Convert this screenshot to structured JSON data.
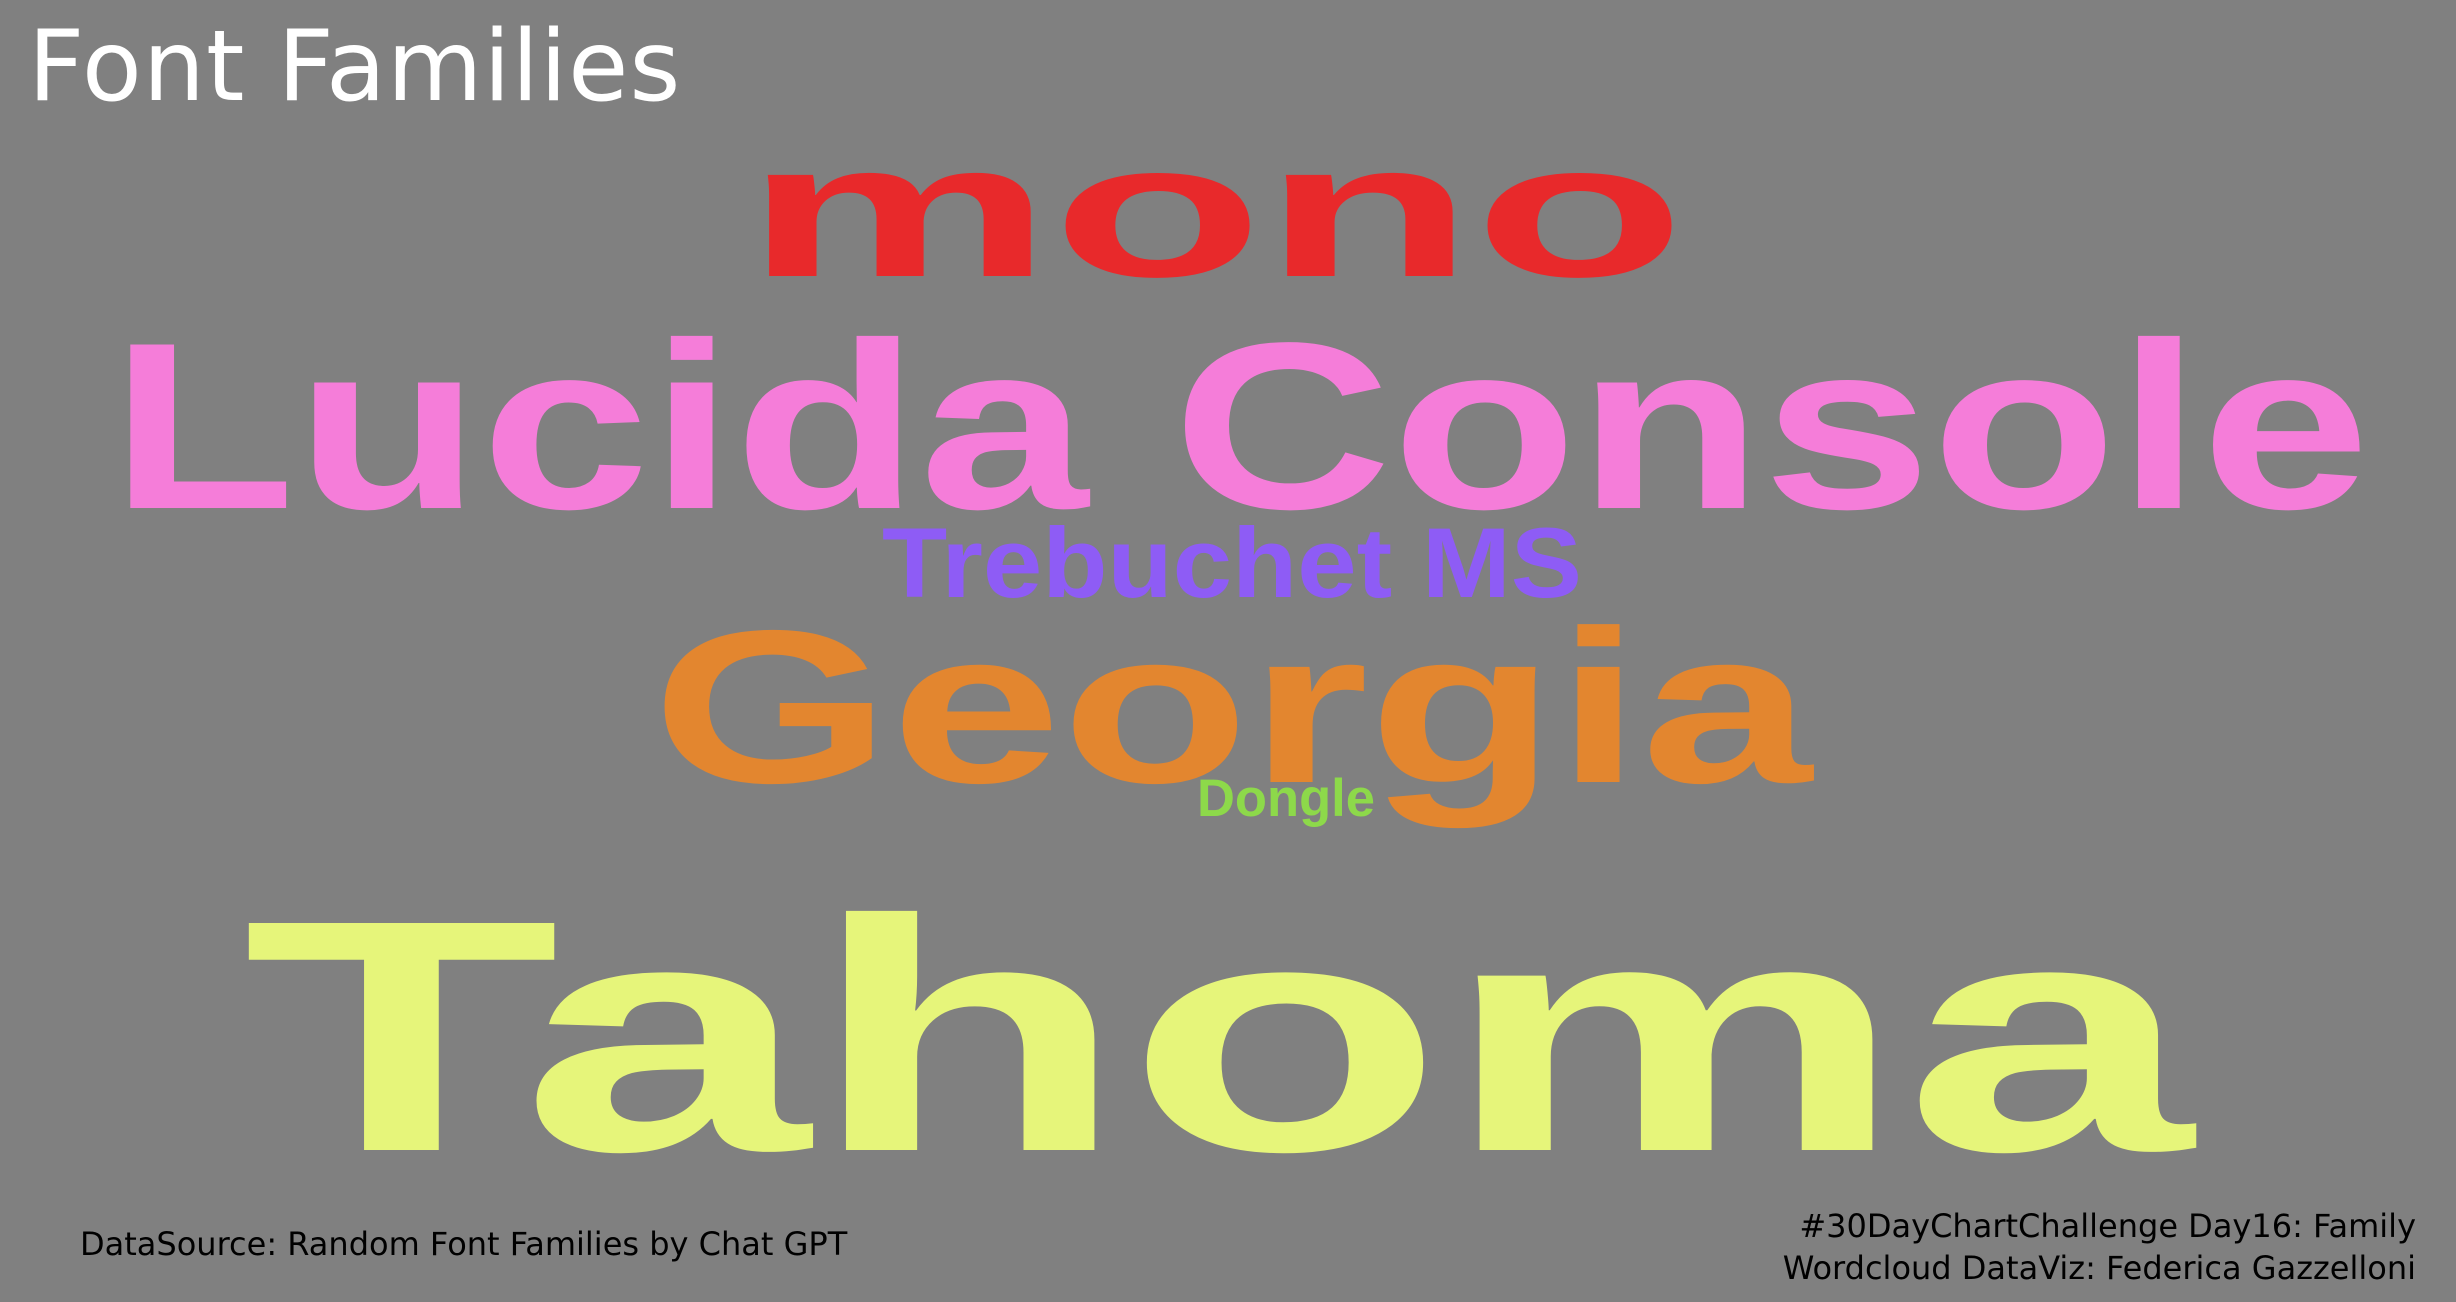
{
  "title": "Font Families",
  "chart_data": {
    "type": "wordcloud",
    "background_color": "#808080",
    "words": [
      {
        "text": "Tahoma",
        "weight": 100,
        "color": "#E6F57A"
      },
      {
        "text": "Lucida Console",
        "weight": 72,
        "color": "#F57DD9"
      },
      {
        "text": "Georgia",
        "weight": 66,
        "color": "#E3862F"
      },
      {
        "text": "mono",
        "weight": 58,
        "color": "#E8292B"
      },
      {
        "text": "Trebuchet MS",
        "weight": 30,
        "color": "#8E5CF5"
      },
      {
        "text": "Dongle",
        "weight": 16,
        "color": "#8DD94A"
      }
    ]
  },
  "footer": {
    "source": "DataSource: Random Font Families by Chat GPT",
    "caption_line1": "#30DayChartChallenge Day16: Family",
    "caption_line2": "Wordcloud DataViz: Federica Gazzelloni"
  }
}
